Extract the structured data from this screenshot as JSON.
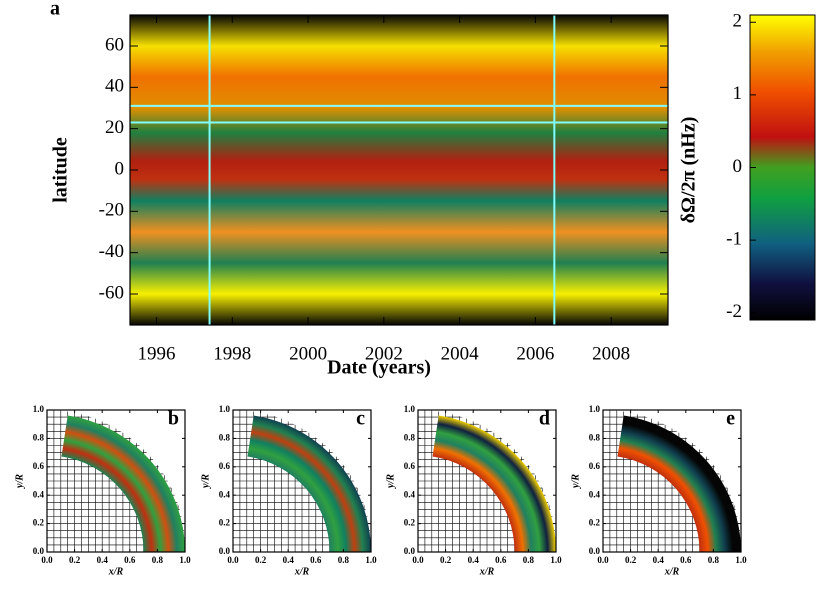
{
  "chart_data": [
    {
      "type": "heatmap",
      "panel_label": "a",
      "xlabel": "Date (years)",
      "ylabel": "latitude",
      "xlim": [
        1995.3,
        2009.5
      ],
      "xticks": [
        1996,
        1998,
        2000,
        2002,
        2004,
        2006,
        2008
      ],
      "ylim": [
        -75,
        75
      ],
      "yticks": [
        -60,
        -40,
        -20,
        0,
        20,
        40,
        60
      ],
      "reference_lines": {
        "x": [
          1997.4,
          2006.5
        ],
        "y": [
          31,
          23
        ],
        "color": "#80ffff"
      },
      "colorbar": {
        "label": "δΩ/2π (nHz)",
        "lim": [
          -2.1,
          2.1
        ],
        "ticks": [
          -2,
          -1,
          0,
          1,
          2
        ]
      }
    },
    {
      "type": "heatmap",
      "panel_label": "b",
      "xlabel": "x/R",
      "ylabel": "y/R",
      "xlim": [
        0,
        1
      ],
      "ylim": [
        0,
        1
      ],
      "xticks": [
        {
          "value": 0,
          "label": "0.0"
        },
        0.2,
        0.4,
        0.6,
        0.8,
        {
          "value": 1,
          "label": "1.0"
        }
      ],
      "yticks": [
        {
          "value": 0,
          "label": "0.0"
        },
        0.2,
        0.4,
        0.6,
        0.8,
        {
          "value": 1,
          "label": "1.0"
        }
      ]
    },
    {
      "type": "heatmap",
      "panel_label": "c",
      "xlabel": "x/R",
      "ylabel": "y/R",
      "xlim": [
        0,
        1
      ],
      "ylim": [
        0,
        1
      ],
      "xticks": [
        {
          "value": 0,
          "label": "0.0"
        },
        0.2,
        0.4,
        0.6,
        0.8,
        {
          "value": 1,
          "label": "1.0"
        }
      ],
      "yticks": [
        {
          "value": 0,
          "label": "0.0"
        },
        0.2,
        0.4,
        0.6,
        0.8,
        {
          "value": 1,
          "label": "1.0"
        }
      ]
    },
    {
      "type": "heatmap",
      "panel_label": "d",
      "xlabel": "x/R",
      "ylabel": "y/R",
      "xlim": [
        0,
        1
      ],
      "ylim": [
        0,
        1
      ],
      "xticks": [
        {
          "value": 0,
          "label": "0.0"
        },
        0.2,
        0.4,
        0.6,
        0.8,
        {
          "value": 1,
          "label": "1.0"
        }
      ],
      "yticks": [
        {
          "value": 0,
          "label": "0.0"
        },
        0.2,
        0.4,
        0.6,
        0.8,
        {
          "value": 1,
          "label": "1.0"
        }
      ]
    },
    {
      "type": "heatmap",
      "panel_label": "e",
      "xlabel": "x/R",
      "ylabel": "y/R",
      "xlim": [
        0,
        1
      ],
      "ylim": [
        0,
        1
      ],
      "xticks": [
        {
          "value": 0,
          "label": "0.0"
        },
        0.2,
        0.4,
        0.6,
        0.8,
        {
          "value": 1,
          "label": "1.0"
        }
      ],
      "yticks": [
        {
          "value": 0,
          "label": "0.0"
        },
        0.2,
        0.4,
        0.6,
        0.8,
        {
          "value": 1,
          "label": "1.0"
        }
      ]
    }
  ]
}
